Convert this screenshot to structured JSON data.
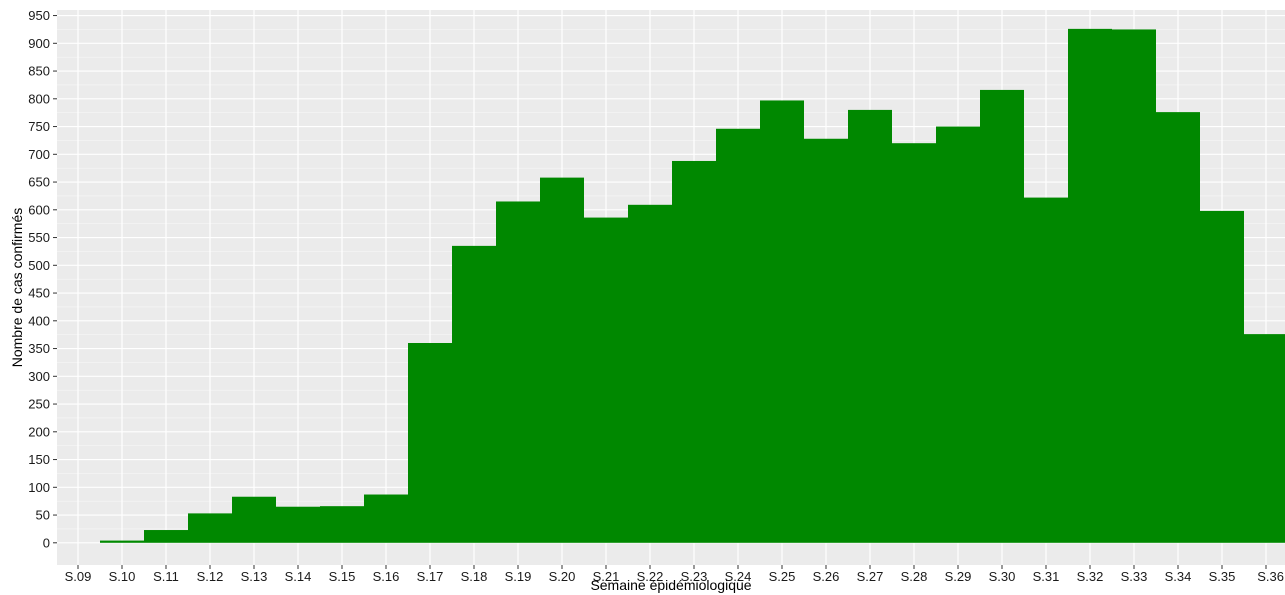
{
  "chart_data": {
    "type": "bar",
    "title": "",
    "xlabel": "Semaine épidémiologique",
    "ylabel": "Nombre de cas confirmés",
    "ylim": [
      -40,
      960
    ],
    "yticks": [
      0,
      50,
      100,
      150,
      200,
      250,
      300,
      350,
      400,
      450,
      500,
      550,
      600,
      650,
      700,
      750,
      800,
      850,
      900,
      950
    ],
    "grid": true,
    "legend": "none",
    "categories": [
      "S.09",
      "S.10",
      "S.11",
      "S.12",
      "S.13",
      "S.14",
      "S.15",
      "S.16",
      "S.17",
      "S.18",
      "S.19",
      "S.20",
      "S.21",
      "S.22",
      "S.23",
      "S.24",
      "S.25",
      "S.26",
      "S.27",
      "S.28",
      "S.29",
      "S.30",
      "S.31",
      "S.32",
      "S.33",
      "S.34",
      "S.35",
      "S.36"
    ],
    "values": [
      0,
      4,
      23,
      53,
      83,
      65,
      66,
      87,
      360,
      535,
      615,
      658,
      586,
      609,
      688,
      746,
      797,
      728,
      780,
      720,
      750,
      816,
      622,
      926,
      925,
      776,
      598,
      376
    ],
    "colors": {
      "bar": "#008800",
      "panel": "#ebebeb",
      "grid": "#ffffff",
      "text": "#1a1a1a"
    }
  }
}
